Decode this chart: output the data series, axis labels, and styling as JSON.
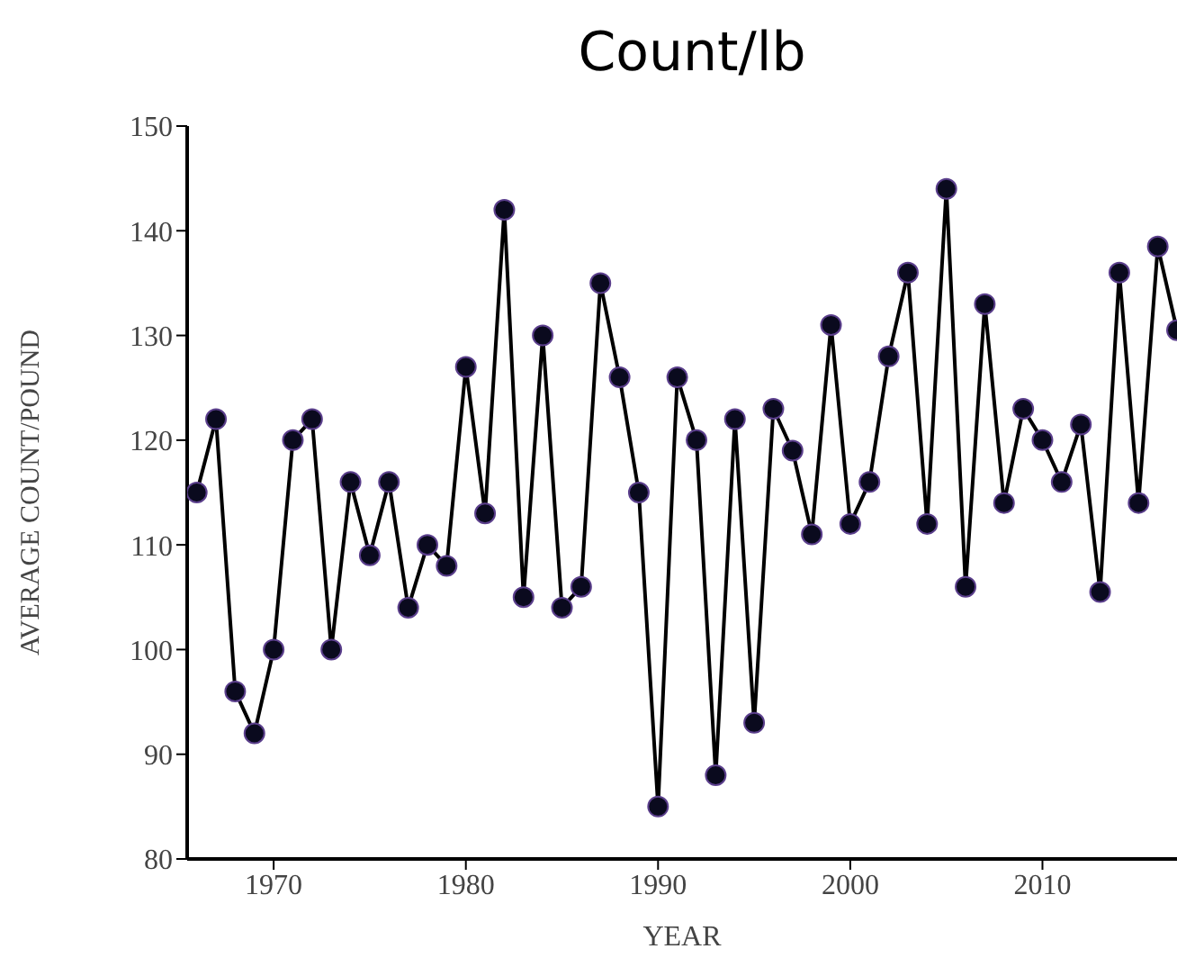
{
  "chart_data": {
    "type": "line",
    "title": "Count/lb",
    "xlabel": "YEAR",
    "ylabel": "AVERAGE COUNT/POUND",
    "x": [
      1966,
      1967,
      1968,
      1969,
      1970,
      1971,
      1972,
      1973,
      1974,
      1975,
      1976,
      1977,
      1978,
      1979,
      1980,
      1981,
      1982,
      1983,
      1984,
      1985,
      1986,
      1987,
      1988,
      1989,
      1990,
      1991,
      1992,
      1993,
      1994,
      1995,
      1996,
      1997,
      1998,
      1999,
      2000,
      2001,
      2002,
      2003,
      2004,
      2005,
      2006,
      2007,
      2008,
      2009,
      2010,
      2011,
      2012,
      2013,
      2014,
      2015,
      2016,
      2017
    ],
    "series": [
      {
        "color": "#000000",
        "values": [
          115,
          122,
          96,
          92,
          100,
          120,
          122,
          100,
          116,
          109,
          116,
          104,
          110,
          108,
          127,
          113,
          142,
          105,
          130,
          104,
          106,
          135,
          126,
          115,
          85,
          126,
          120,
          88,
          122,
          93,
          123,
          119,
          111,
          131,
          112,
          116,
          128,
          136,
          112,
          144,
          106,
          133,
          114,
          123,
          120,
          116,
          121.5,
          105.5,
          136,
          114,
          138.5,
          130.5
        ]
      }
    ],
    "xlim": [
      1965.5,
      2017
    ],
    "xticks": [
      1970,
      1980,
      1990,
      2000,
      2010
    ],
    "ylim": [
      80,
      150
    ],
    "yticks": [
      80,
      90,
      100,
      110,
      120,
      130,
      140,
      150
    ],
    "marker": "circle",
    "line_style": "solid",
    "grid": false,
    "legend": false
  }
}
